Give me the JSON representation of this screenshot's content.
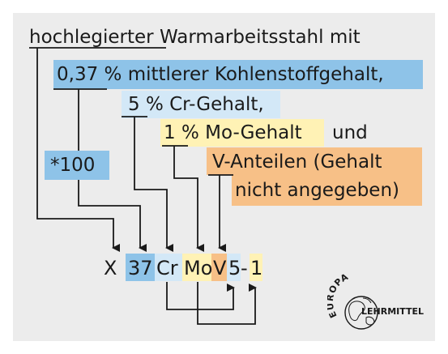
{
  "title": {
    "underlined": "hochlegierter",
    "rest": "Warmarbeitsstahl mit"
  },
  "items": {
    "carbon": "0,37 % mittlerer Kohlenstoffgehalt,",
    "chromium": "5 % Cr-Gehalt,",
    "molybdenum": "1 % Mo-Gehalt",
    "und": "und",
    "vanadium_line1": "V-Anteilen (Gehalt",
    "vanadium_line2": "nicht angegeben)",
    "factor": "*100"
  },
  "code": {
    "x": "X",
    "carbon": "37",
    "cr": "Cr",
    "mo": "Mo",
    "v": "V",
    "five": "5",
    "dash": "-",
    "one": "1"
  },
  "logo": {
    "top": "EUROPA",
    "bottom": "LEHRMITTEL"
  },
  "colors": {
    "carbon": "#8ec3e8",
    "chromium": "#d3e8f7",
    "molybdenum": "#fff2b5",
    "vanadium": "#f7c087"
  }
}
